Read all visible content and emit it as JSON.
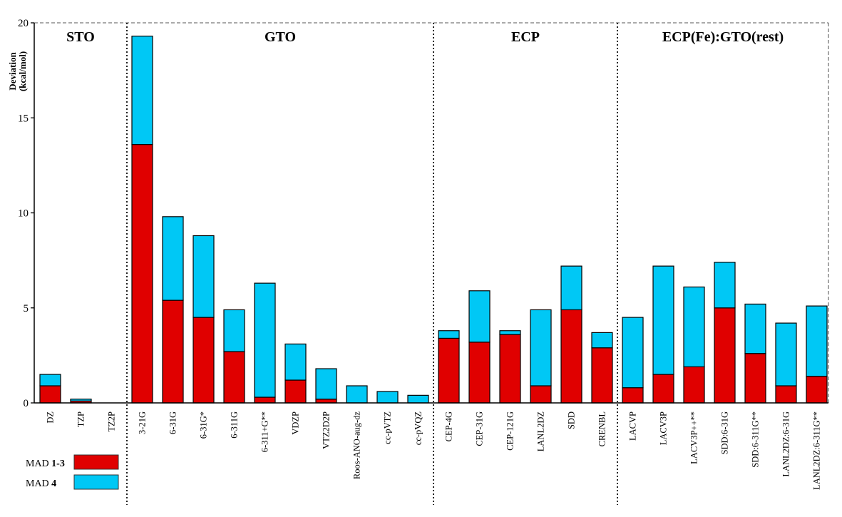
{
  "chart_data": {
    "type": "bar",
    "stacked": true,
    "ylabel_line1": "Deviation",
    "ylabel_line2": "(kcal/mol)",
    "ylim": [
      0,
      20
    ],
    "yticks": [
      0,
      5,
      10,
      15,
      20
    ],
    "categories": [
      "DZ",
      "TZP",
      "TZ2P",
      "3-21G",
      "6-31G",
      "6-31G*",
      "6-311G",
      "6-311+G**",
      "VDZP",
      "VTZ2D2P",
      "Roos-ANO-aug-dz",
      "cc-pVTZ",
      "cc-pVQZ",
      "CEP-4G",
      "CEP-31G",
      "CEP-121G",
      "LANL2DZ",
      "SDD",
      "CRENBL",
      "LACVP",
      "LACV3P",
      "LACV3P++**",
      "SDD:6-31G",
      "SDD:6-311G**",
      "LANL2DZ:6-31G",
      "LANL2DZ:6-311G**"
    ],
    "groups": [
      {
        "title": "STO",
        "start": 0,
        "end": 2
      },
      {
        "title": "GTO",
        "start": 3,
        "end": 12
      },
      {
        "title": "ECP",
        "start": 13,
        "end": 18
      },
      {
        "title": "ECP(Fe):GTO(rest)",
        "start": 19,
        "end": 25
      }
    ],
    "series": [
      {
        "name": "MAD 1-3",
        "prefix": "MAD ",
        "bold": "1-3",
        "color": "#e00000",
        "values": [
          0.9,
          0.1,
          0.0,
          13.6,
          5.4,
          4.5,
          2.7,
          0.3,
          1.2,
          0.2,
          0.0,
          0.0,
          0.0,
          3.4,
          3.2,
          3.6,
          0.9,
          4.9,
          2.9,
          0.8,
          1.5,
          1.9,
          5.0,
          2.6,
          0.9,
          1.4
        ]
      },
      {
        "name": "MAD 4",
        "prefix": "MAD ",
        "bold": "4",
        "color": "#00c8f5",
        "values": [
          0.6,
          0.1,
          0.0,
          5.7,
          4.4,
          4.3,
          2.2,
          6.0,
          1.9,
          1.6,
          0.9,
          0.6,
          0.4,
          0.4,
          2.7,
          0.2,
          4.0,
          2.3,
          0.8,
          3.7,
          5.7,
          4.2,
          2.4,
          2.6,
          3.3,
          3.7
        ]
      }
    ]
  }
}
